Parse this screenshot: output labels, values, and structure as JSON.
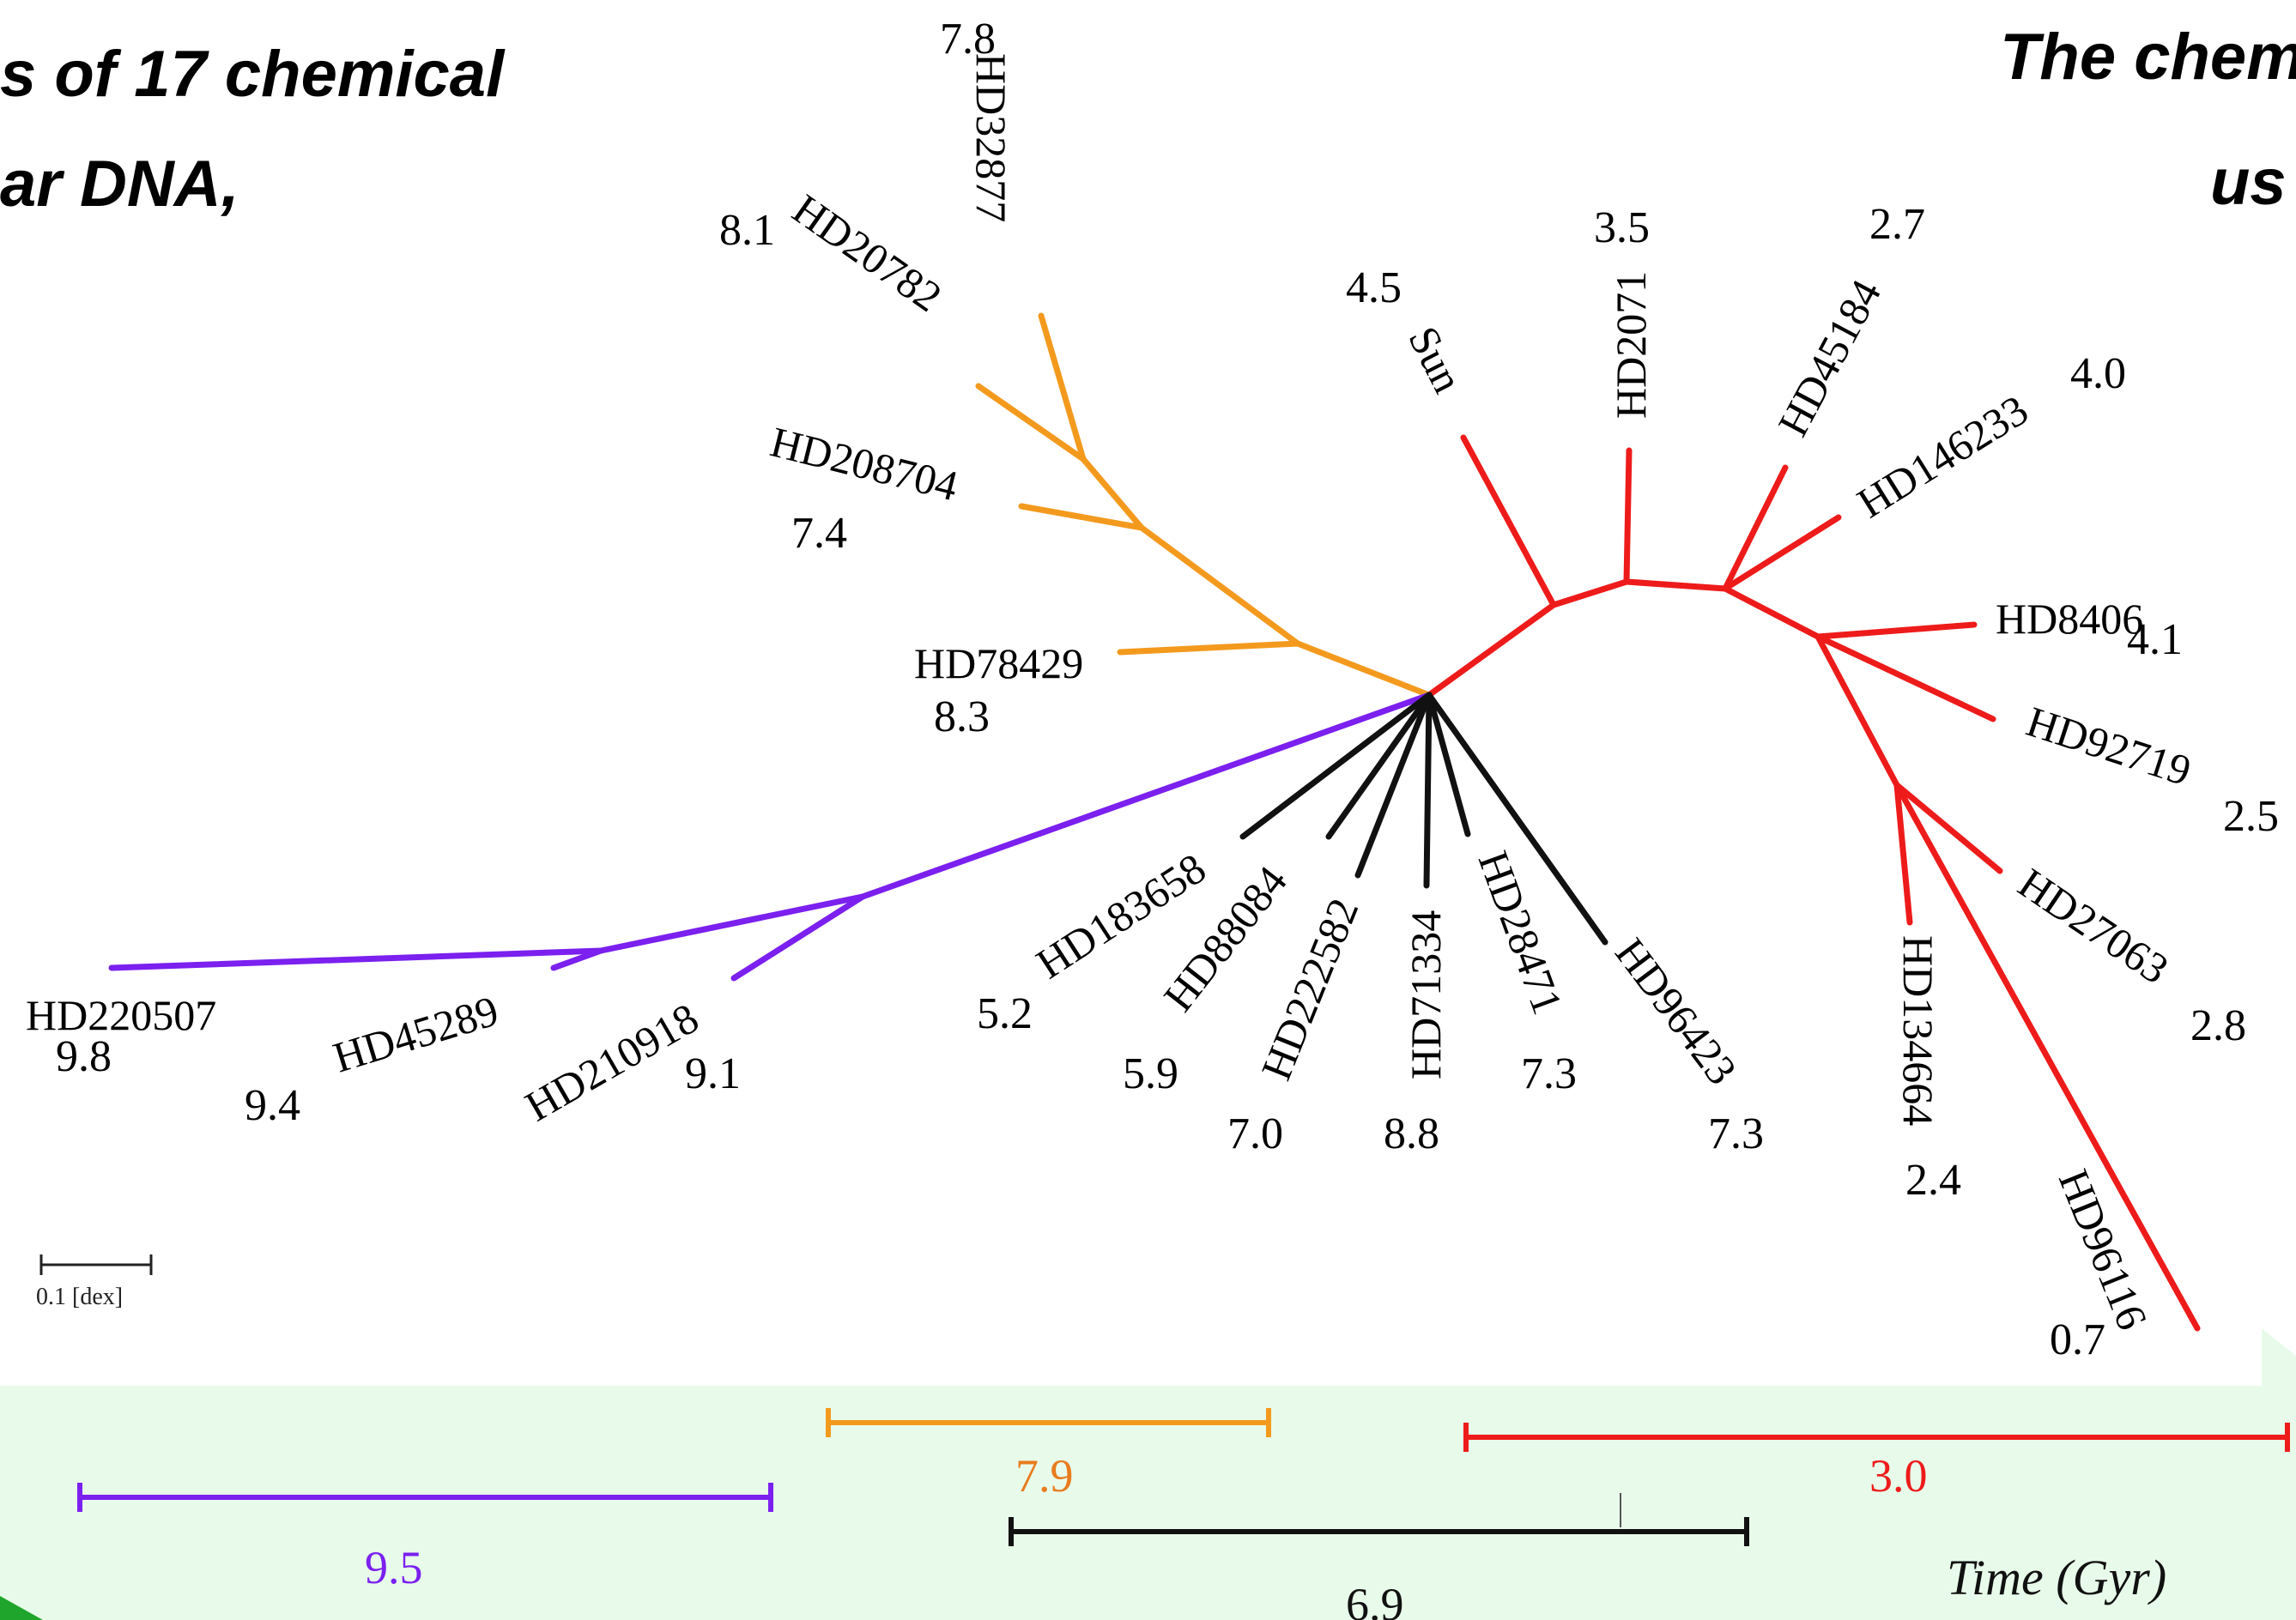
{
  "headings": {
    "left_line1": "s of  17 chemical",
    "left_line2": "ar DNA,",
    "right_line1": "The chem",
    "right_line2": "us"
  },
  "colors": {
    "purple": "#7b20ef",
    "orange": "#f39a1e",
    "black": "#111111",
    "red": "#ee1b1b",
    "band": "#e8fbea",
    "green_corner": "#1fa52b"
  },
  "stars": {
    "HD32877": {
      "name": "HD32877",
      "age": "7.8"
    },
    "HD20782": {
      "name": "HD20782",
      "age": "8.1"
    },
    "HD208704": {
      "name": "HD208704",
      "age": "7.4"
    },
    "HD78429": {
      "name": "HD78429",
      "age": "8.3"
    },
    "Sun": {
      "name": "Sun",
      "age": "4.5"
    },
    "HD2071": {
      "name": "HD2071",
      "age": "3.5"
    },
    "HD45184": {
      "name": "HD45184",
      "age": "2.7"
    },
    "HD146233": {
      "name": "HD146233",
      "age": "4.0"
    },
    "HD8406": {
      "name": "HD8406",
      "age": "4.1"
    },
    "HD92719": {
      "name": "HD92719",
      "age": "2.5"
    },
    "HD27063": {
      "name": "HD27063",
      "age": "2.8"
    },
    "HD134664": {
      "name": "HD134664",
      "age": "2.4"
    },
    "HD96116": {
      "name": "HD96116",
      "age": "0.7"
    },
    "HD220507": {
      "name": "HD220507",
      "age": "9.8"
    },
    "HD45289": {
      "name": "HD45289",
      "age": "9.4"
    },
    "HD210918": {
      "name": "HD210918",
      "age": "9.1"
    },
    "HD183658": {
      "name": "HD183658",
      "age": "5.2"
    },
    "HD88084": {
      "name": "HD88084",
      "age": "5.9"
    },
    "HD222582": {
      "name": "HD222582",
      "age": "7.0"
    },
    "HD71334": {
      "name": "HD71334",
      "age": "8.8"
    },
    "HD28471": {
      "name": "HD28471",
      "age": "7.3"
    },
    "HD96423": {
      "name": "HD96423",
      "age": "7.3"
    }
  },
  "scale_bar": {
    "label": "0.1 [dex]"
  },
  "timeline": {
    "purple_mean": "9.5",
    "orange_mean": "7.9",
    "black_mean": "6.9",
    "red_mean": "3.0",
    "axis_title": "Time (Gyr)"
  }
}
